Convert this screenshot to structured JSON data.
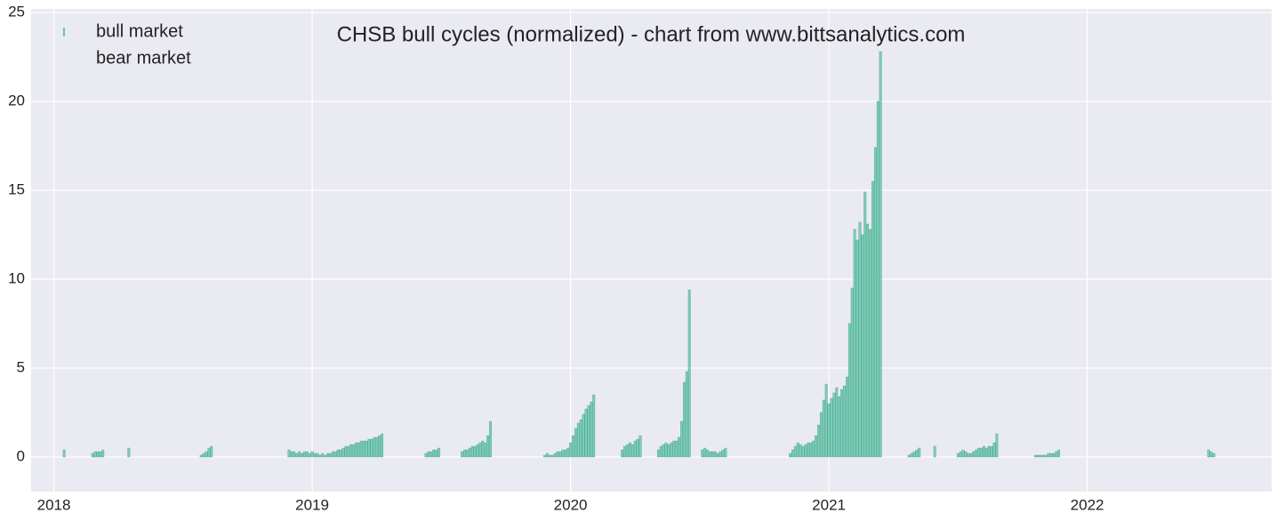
{
  "chart_data": {
    "type": "bar",
    "title": "CHSB bull cycles (normalized)  - chart from www.bittsanalytics.com",
    "xlim": [
      2017.912,
      2022.714
    ],
    "xticks": [
      2018,
      2019,
      2020,
      2021,
      2022
    ],
    "ylim": [
      -1.95,
      25.2
    ],
    "yticks": [
      0,
      5,
      10,
      15,
      20,
      25
    ],
    "grid": true,
    "legend": "upper left",
    "series": [
      {
        "name": "bull market",
        "color": "#66c9ad",
        "x": [
          2018.04,
          2018.15,
          2018.16,
          2018.17,
          2018.18,
          2018.19,
          2018.29,
          2018.57,
          2018.58,
          2018.59,
          2018.6,
          2018.61,
          2018.91,
          2018.92,
          2018.93,
          2018.94,
          2018.95,
          2018.96,
          2018.97,
          2018.98,
          2018.99,
          2019.0,
          2019.01,
          2019.02,
          2019.03,
          2019.04,
          2019.05,
          2019.06,
          2019.07,
          2019.08,
          2019.09,
          2019.1,
          2019.11,
          2019.12,
          2019.13,
          2019.14,
          2019.15,
          2019.16,
          2019.17,
          2019.18,
          2019.19,
          2019.2,
          2019.21,
          2019.22,
          2019.23,
          2019.24,
          2019.25,
          2019.26,
          2019.27,
          2019.44,
          2019.45,
          2019.46,
          2019.47,
          2019.48,
          2019.49,
          2019.58,
          2019.59,
          2019.6,
          2019.61,
          2019.62,
          2019.63,
          2019.64,
          2019.65,
          2019.66,
          2019.67,
          2019.68,
          2019.69,
          2019.9,
          2019.91,
          2019.92,
          2019.93,
          2019.94,
          2019.95,
          2019.96,
          2019.97,
          2019.98,
          2019.99,
          2020.0,
          2020.01,
          2020.02,
          2020.03,
          2020.04,
          2020.05,
          2020.06,
          2020.07,
          2020.08,
          2020.09,
          2020.2,
          2020.21,
          2020.22,
          2020.23,
          2020.24,
          2020.25,
          2020.26,
          2020.27,
          2020.34,
          2020.35,
          2020.36,
          2020.37,
          2020.38,
          2020.39,
          2020.4,
          2020.41,
          2020.42,
          2020.43,
          2020.44,
          2020.45,
          2020.46,
          2020.51,
          2020.52,
          2020.53,
          2020.54,
          2020.55,
          2020.56,
          2020.57,
          2020.58,
          2020.59,
          2020.6,
          2020.85,
          2020.86,
          2020.87,
          2020.88,
          2020.89,
          2020.9,
          2020.91,
          2020.92,
          2020.93,
          2020.94,
          2020.95,
          2020.96,
          2020.97,
          2020.98,
          2020.99,
          2021.0,
          2021.01,
          2021.02,
          2021.03,
          2021.04,
          2021.05,
          2021.06,
          2021.07,
          2021.08,
          2021.09,
          2021.1,
          2021.11,
          2021.12,
          2021.13,
          2021.14,
          2021.15,
          2021.16,
          2021.17,
          2021.18,
          2021.19,
          2021.2,
          2021.31,
          2021.32,
          2021.33,
          2021.34,
          2021.35,
          2021.41,
          2021.5,
          2021.51,
          2021.52,
          2021.53,
          2021.54,
          2021.55,
          2021.56,
          2021.57,
          2021.58,
          2021.59,
          2021.6,
          2021.61,
          2021.62,
          2021.63,
          2021.64,
          2021.65,
          2021.8,
          2021.81,
          2021.82,
          2021.83,
          2021.84,
          2021.85,
          2021.86,
          2021.87,
          2021.88,
          2021.89,
          2022.47,
          2022.48,
          2022.49
        ],
        "values": [
          0.4,
          0.2,
          0.3,
          0.3,
          0.3,
          0.4,
          0.5,
          0.1,
          0.2,
          0.3,
          0.5,
          0.6,
          0.4,
          0.3,
          0.3,
          0.2,
          0.3,
          0.2,
          0.3,
          0.3,
          0.2,
          0.3,
          0.2,
          0.2,
          0.1,
          0.2,
          0.1,
          0.2,
          0.2,
          0.3,
          0.3,
          0.4,
          0.4,
          0.5,
          0.6,
          0.6,
          0.7,
          0.7,
          0.8,
          0.8,
          0.9,
          0.9,
          0.9,
          1.0,
          1.0,
          1.1,
          1.1,
          1.2,
          1.3,
          0.2,
          0.3,
          0.3,
          0.4,
          0.4,
          0.5,
          0.3,
          0.4,
          0.4,
          0.5,
          0.6,
          0.6,
          0.7,
          0.8,
          0.9,
          0.8,
          1.2,
          2.0,
          0.1,
          0.2,
          0.1,
          0.1,
          0.2,
          0.3,
          0.3,
          0.4,
          0.4,
          0.5,
          0.8,
          1.2,
          1.6,
          1.9,
          2.1,
          2.4,
          2.7,
          2.9,
          3.1,
          3.5,
          0.4,
          0.6,
          0.7,
          0.8,
          0.7,
          0.9,
          1.0,
          1.2,
          0.4,
          0.6,
          0.7,
          0.8,
          0.7,
          0.8,
          0.9,
          0.9,
          1.1,
          2.0,
          4.2,
          4.8,
          9.4,
          0.4,
          0.5,
          0.4,
          0.3,
          0.3,
          0.3,
          0.2,
          0.3,
          0.4,
          0.5,
          0.2,
          0.4,
          0.6,
          0.8,
          0.7,
          0.6,
          0.7,
          0.8,
          0.8,
          0.9,
          1.2,
          1.8,
          2.5,
          3.2,
          4.1,
          3.0,
          3.3,
          3.6,
          3.9,
          3.4,
          3.8,
          4.0,
          4.5,
          7.5,
          9.5,
          12.8,
          12.2,
          13.2,
          12.5,
          14.9,
          13.1,
          12.8,
          15.5,
          17.4,
          20.0,
          22.8,
          0.1,
          0.2,
          0.3,
          0.4,
          0.5,
          0.6,
          0.2,
          0.3,
          0.4,
          0.3,
          0.2,
          0.2,
          0.3,
          0.4,
          0.5,
          0.5,
          0.6,
          0.5,
          0.6,
          0.6,
          0.8,
          1.3,
          0.1,
          0.1,
          0.1,
          0.1,
          0.1,
          0.2,
          0.2,
          0.2,
          0.3,
          0.4,
          0.4,
          0.3,
          0.2
        ]
      },
      {
        "name": "bear market",
        "x": [],
        "values": []
      }
    ]
  }
}
